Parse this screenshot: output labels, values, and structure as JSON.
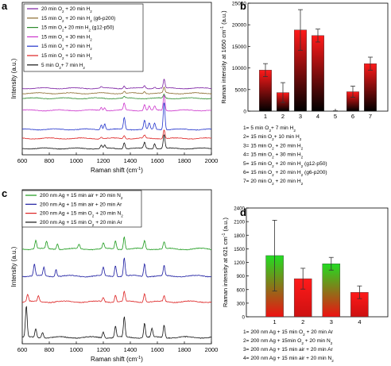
{
  "chart_data": [
    {
      "id": "a",
      "type": "line",
      "panel_label": "a",
      "xlabel": "Raman shift (cm",
      "xlabel_sup": "-1",
      "xlabel_end": ")",
      "ylabel": "Intensity (a.u.)",
      "xlim": [
        600,
        2000
      ],
      "xticks": [
        600,
        800,
        1000,
        1200,
        1400,
        1600,
        1800,
        2000
      ],
      "grid": false,
      "legend_position": "top-left",
      "legend": [
        {
          "parts": [
            "20 min O",
            "2",
            " + 20 min H",
            "2"
          ]
        },
        {
          "parts": [
            "15 min O",
            "2",
            " + 20 min H",
            "2",
            " (g6-p200)"
          ]
        },
        {
          "parts": [
            "15 min O",
            "2",
            "+ 20 min H",
            "2",
            " (g12-p50)"
          ]
        },
        {
          "parts": [
            "15 min O",
            "2",
            " + 30 min H",
            "2"
          ]
        },
        {
          "parts": [
            "15 min O",
            "2",
            " + 20 min H",
            "2"
          ]
        },
        {
          "parts": [
            "15 min O",
            "2",
            " + 10 min H",
            "2"
          ]
        },
        {
          "parts": [
            "5 min O",
            "2",
            "+ 7 min H",
            "2"
          ]
        }
      ],
      "series": [
        {
          "color": "#7b1fa2",
          "offset": 6,
          "peaks": [
            [
              1185,
              0.15
            ],
            [
              1355,
              0.25
            ],
            [
              1505,
              0.25
            ],
            [
              1580,
              0.15
            ],
            [
              1650,
              0.9
            ]
          ]
        },
        {
          "color": "#8b6b2e",
          "offset": 5.5,
          "peaks": [
            [
              1355,
              0.2
            ],
            [
              1505,
              0.2
            ],
            [
              1650,
              0.6
            ]
          ]
        },
        {
          "color": "#2e8b2e",
          "offset": 5.0,
          "peaks": [
            [
              1355,
              0.15
            ],
            [
              1650,
              0.4
            ]
          ]
        },
        {
          "color": "#cc33cc",
          "offset": 3.8,
          "peaks": [
            [
              1185,
              0.3
            ],
            [
              1210,
              0.3
            ],
            [
              1355,
              0.7
            ],
            [
              1505,
              0.6
            ],
            [
              1540,
              0.4
            ],
            [
              1580,
              0.4
            ],
            [
              1650,
              1.6
            ]
          ]
        },
        {
          "color": "#2233cc",
          "offset": 1.9,
          "peaks": [
            [
              1185,
              0.5
            ],
            [
              1210,
              0.6
            ],
            [
              1355,
              1.2
            ],
            [
              1505,
              0.9
            ],
            [
              1540,
              0.6
            ],
            [
              1580,
              0.6
            ],
            [
              1650,
              2.8
            ]
          ]
        },
        {
          "color": "#dd2222",
          "offset": 1.0,
          "peaks": [
            [
              1185,
              0.15
            ],
            [
              1355,
              0.3
            ],
            [
              1505,
              0.3
            ],
            [
              1650,
              0.9
            ]
          ]
        },
        {
          "color": "#111111",
          "offset": 0,
          "peaks": [
            [
              1185,
              0.3
            ],
            [
              1210,
              0.3
            ],
            [
              1355,
              0.6
            ],
            [
              1505,
              0.6
            ],
            [
              1580,
              0.5
            ],
            [
              1650,
              1.4
            ]
          ]
        }
      ]
    },
    {
      "id": "b",
      "type": "bar",
      "panel_label": "b",
      "ylabel": "Raman intensity at 1650 cm",
      "ylabel_sup": "-1",
      "ylabel_end": " (a.u.)",
      "ylim": [
        0,
        25000
      ],
      "yticks": [
        0,
        5000,
        10000,
        15000,
        20000,
        25000
      ],
      "categories": [
        "1",
        "2",
        "3",
        "4",
        "5",
        "6",
        "7"
      ],
      "values": [
        9500,
        4300,
        18800,
        17500,
        0,
        4500,
        11000
      ],
      "errors": [
        1500,
        2300,
        4700,
        1500,
        0,
        1300,
        1500
      ],
      "bar_gradient": [
        "#ff1a1a",
        "#000000"
      ],
      "grid": false,
      "key": [
        {
          "parts": [
            "1= 5 min O",
            "2",
            "+ 7 min H",
            "2"
          ]
        },
        {
          "parts": [
            "2= 15 min O",
            "2",
            "+ 10 min H",
            "2"
          ]
        },
        {
          "parts": [
            "3= 15 min O",
            "2",
            " + 20 min H",
            "2"
          ]
        },
        {
          "parts": [
            "4= 15 min O",
            "2",
            " + 30 min H",
            "2"
          ]
        },
        {
          "parts": [
            "5= 15 min O",
            "2",
            " + 20 min H",
            "2",
            " (g12-p50)"
          ]
        },
        {
          "parts": [
            "6= 15 min O",
            "2",
            " + 20 min H",
            "2",
            " (g6-p200)"
          ]
        },
        {
          "parts": [
            "7= 20 min O",
            "2",
            " + 20 min H",
            "2"
          ]
        }
      ]
    },
    {
      "id": "c",
      "type": "line",
      "panel_label": "c",
      "xlabel": "Raman shift (cm",
      "xlabel_sup": "-1",
      "xlabel_end": ")",
      "ylabel": "Intensity (a.u.)",
      "xlim": [
        600,
        2000
      ],
      "xticks": [
        600,
        800,
        1000,
        1200,
        1400,
        1600,
        1800,
        2000
      ],
      "grid": false,
      "legend_position": "top-left",
      "legend": [
        {
          "parts": [
            "200 nm Ag + 15 min air + 20 min N",
            "2"
          ]
        },
        {
          "parts": [
            "200 nm Ag + 15 min air + 20 min Ar"
          ]
        },
        {
          "parts": [
            "200 nm Ag + 15 min O",
            "2",
            " + 20 min N",
            "2"
          ]
        },
        {
          "parts": [
            "200 nm Ag + 15 min O",
            "2",
            " + 20 min Ar"
          ]
        }
      ],
      "series": [
        {
          "color": "#1a9a1a",
          "offset": 6.2,
          "peaks": [
            [
              700,
              0.6
            ],
            [
              780,
              0.5
            ],
            [
              860,
              0.4
            ],
            [
              1020,
              0.3
            ],
            [
              1200,
              0.4
            ],
            [
              1290,
              0.6
            ],
            [
              1355,
              0.9
            ],
            [
              1505,
              0.6
            ],
            [
              1650,
              0.5
            ]
          ]
        },
        {
          "color": "#1a1aa0",
          "offset": 4.3,
          "peaks": [
            [
              690,
              0.8
            ],
            [
              760,
              0.6
            ],
            [
              850,
              0.5
            ],
            [
              1200,
              0.6
            ],
            [
              1290,
              0.8
            ],
            [
              1355,
              1.3
            ],
            [
              1505,
              0.9
            ],
            [
              1650,
              0.7
            ]
          ]
        },
        {
          "color": "#dd2222",
          "offset": 2.5,
          "peaks": [
            [
              640,
              0.5
            ],
            [
              720,
              0.4
            ],
            [
              1200,
              0.3
            ],
            [
              1290,
              0.5
            ],
            [
              1355,
              0.7
            ],
            [
              1505,
              0.6
            ],
            [
              1650,
              0.4
            ]
          ]
        },
        {
          "color": "#111111",
          "offset": 0,
          "peaks": [
            [
              630,
              2.2
            ],
            [
              700,
              0.6
            ],
            [
              750,
              0.4
            ],
            [
              1200,
              0.4
            ],
            [
              1290,
              0.8
            ],
            [
              1355,
              1.4
            ],
            [
              1505,
              1.0
            ],
            [
              1560,
              0.6
            ],
            [
              1650,
              0.9
            ]
          ]
        }
      ]
    },
    {
      "id": "d",
      "type": "bar",
      "panel_label": "d",
      "ylabel": "Raman intensity at 621 cm",
      "ylabel_sup": "-1",
      "ylabel_end": " (a.u.)",
      "ylim": [
        0,
        2400
      ],
      "yticks": [
        0,
        300,
        600,
        900,
        1200,
        1500,
        1800,
        2100,
        2400
      ],
      "categories": [
        "1",
        "2",
        "3",
        "4"
      ],
      "values": [
        1350,
        840,
        1170,
        540
      ],
      "errors": [
        780,
        230,
        140,
        140
      ],
      "bar_gradients": [
        [
          "#22dd22",
          "#ee1111"
        ],
        [
          "#ff1a1a",
          "#ee1111"
        ],
        [
          "#22dd22",
          "#ee1111"
        ],
        [
          "#ff1a1a",
          "#ee1111"
        ]
      ],
      "grid": false,
      "key": [
        {
          "parts": [
            "1= 200 nm Ag + 15 min O",
            "2",
            " + 20 min Ar"
          ]
        },
        {
          "parts": [
            "2= 200 nm Ag + 15min O",
            "2",
            " + 20 min N",
            "2"
          ]
        },
        {
          "parts": [
            "3= 200 nm Ag + 15 min air + 20 min Ar"
          ]
        },
        {
          "parts": [
            "4= 200 nm Ag + 15 min air + 20 min N",
            "2"
          ]
        }
      ]
    }
  ]
}
